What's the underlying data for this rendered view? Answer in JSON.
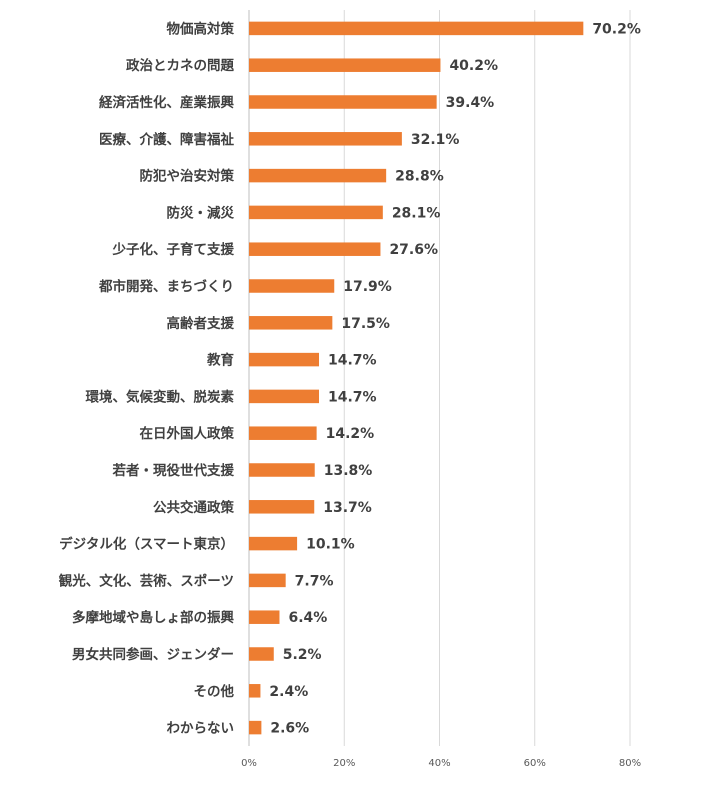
{
  "chart_data": {
    "type": "bar",
    "orientation": "horizontal",
    "title": "",
    "xlabel": "",
    "ylabel": "",
    "categories": [
      "物価高対策",
      "政治とカネの問題",
      "経済活性化、産業振興",
      "医療、介護、障害福祉",
      "防犯や治安対策",
      "防災・減災",
      "少子化、子育て支援",
      "都市開発、まちづくり",
      "高齢者支援",
      "教育",
      "環境、気候変動、脱炭素",
      "在日外国人政策",
      "若者・現役世代支援",
      "公共交通政策",
      "デジタル化（スマート東京）",
      "観光、文化、芸術、スポーツ",
      "多摩地域や島しょ部の振興",
      "男女共同参画、ジェンダー",
      "その他",
      "わからない"
    ],
    "values": [
      70.2,
      40.2,
      39.4,
      32.1,
      28.8,
      28.1,
      27.6,
      17.9,
      17.5,
      14.7,
      14.7,
      14.2,
      13.8,
      13.7,
      10.1,
      7.7,
      6.4,
      5.2,
      2.4,
      2.6
    ],
    "value_labels": [
      "70.2%",
      "40.2%",
      "39.4%",
      "32.1%",
      "28.8%",
      "28.1%",
      "27.6%",
      "17.9%",
      "17.5%",
      "14.7%",
      "14.7%",
      "14.2%",
      "13.8%",
      "13.7%",
      "10.1%",
      "7.7%",
      "6.4%",
      "5.2%",
      "2.4%",
      "2.6%"
    ],
    "xlim": [
      0,
      80
    ],
    "x_ticks": [
      0,
      20,
      40,
      60,
      80
    ],
    "x_tick_labels": [
      "0%",
      "20%",
      "40%",
      "60%",
      "80%"
    ],
    "grid": true,
    "legend": "none",
    "bar_color": "#ED7D31"
  }
}
